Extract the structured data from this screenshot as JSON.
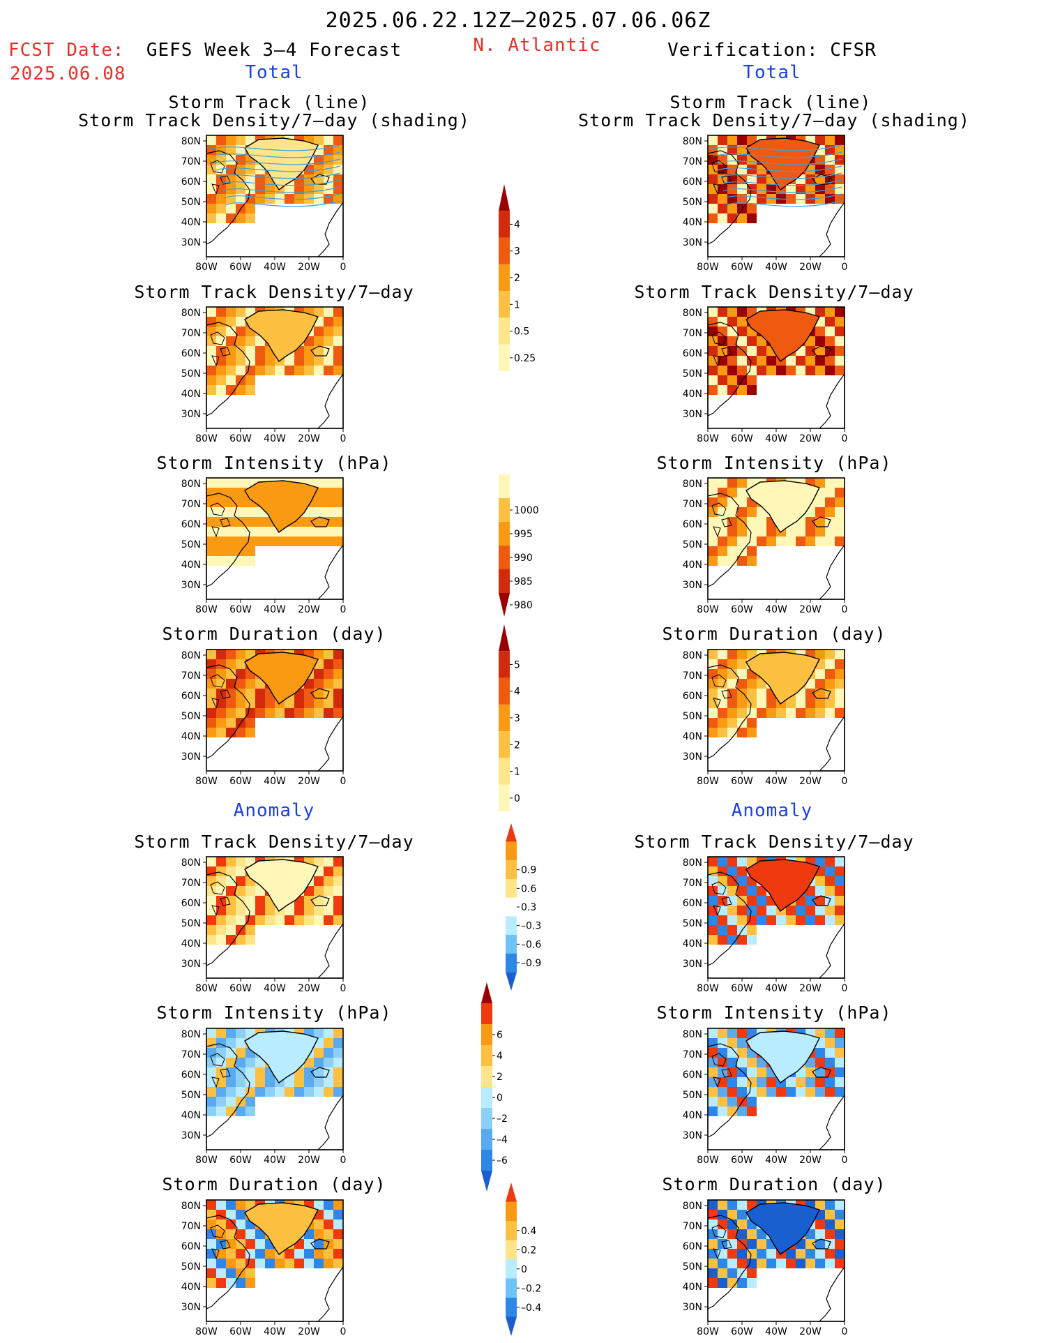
{
  "header": {
    "date_range": "2025.06.22.12Z–2025.07.06.06Z",
    "fcst_label": "FCST Date:",
    "fcst_date": "2025.06.08",
    "model_title": "GEFS Week 3–4 Forecast",
    "region": "N. Atlantic",
    "verification_title": "Verification: CFSR",
    "section_total": "Total",
    "section_anomaly": "Anomaly"
  },
  "panel_titles": {
    "track_line": "Storm Track (line)",
    "track_shading": "Storm Track Density/7–day (shading)",
    "density": "Storm Track Density/7–day",
    "intensity": "Storm Intensity (hPa)",
    "duration": "Storm Duration (day)"
  },
  "map_axes": {
    "lon_labels": [
      "80W",
      "60W",
      "40W",
      "20W",
      "0"
    ],
    "lat_labels": [
      "80N",
      "70N",
      "60N",
      "50N",
      "40N",
      "30N"
    ]
  },
  "colorbars": [
    {
      "id": "density",
      "labels": [
        "4",
        "3",
        "2",
        "1",
        "0.5",
        "0.25"
      ],
      "colors": [
        "#9b0000",
        "#d42a0c",
        "#ef5a10",
        "#f99a12",
        "#fdc040",
        "#ffe58a",
        "#fff7b8"
      ]
    },
    {
      "id": "intensity",
      "labels": [
        "1000",
        "995",
        "990",
        "985",
        "980"
      ],
      "colors": [
        "#fff7b8",
        "#fdc040",
        "#f99a12",
        "#ef5a10",
        "#d42a0c",
        "#9b0000"
      ]
    },
    {
      "id": "duration",
      "labels": [
        "5",
        "4",
        "3",
        "2",
        "1",
        "0"
      ],
      "colors": [
        "#9b0000",
        "#d42a0c",
        "#ef5a10",
        "#f99a12",
        "#fdc040",
        "#ffe58a",
        "#fff7b8"
      ]
    },
    {
      "id": "density_anom",
      "labels": [
        "0.9",
        "0.6",
        "0.3",
        "–0.3",
        "–0.6",
        "–0.9"
      ],
      "colors": [
        "#ef3a10",
        "#f99a12",
        "#fdc040",
        "#ffe58a",
        "#ffffff",
        "#b9ecff",
        "#6fc4f5",
        "#2e86e8",
        "#1a5fd0"
      ]
    },
    {
      "id": "intensity_anom",
      "labels": [
        "6",
        "4",
        "2",
        "0",
        "–2",
        "–4",
        "–6"
      ],
      "colors": [
        "#9b0000",
        "#ef3a10",
        "#f99a12",
        "#fdc040",
        "#ffe58a",
        "#b9ecff",
        "#8ccff7",
        "#5aaaf0",
        "#2e86e8",
        "#1a5fd0"
      ]
    },
    {
      "id": "duration_anom",
      "labels": [
        "0.4",
        "0.2",
        "0",
        "–0.2",
        "–0.4"
      ],
      "colors": [
        "#ef3a10",
        "#f99a12",
        "#fdc040",
        "#ffe58a",
        "#b9ecff",
        "#6fc4f5",
        "#2e86e8",
        "#1a5fd0"
      ]
    }
  ],
  "maps": [
    {
      "id": "fc-track",
      "palette": [
        "#fff7b8",
        "#fdc040",
        "#f99a12",
        "#ef5a10"
      ],
      "land": [
        "#ffe58a",
        "#fdc040"
      ],
      "tracks": true
    },
    {
      "id": "vr-track",
      "palette": [
        "#fff7b8",
        "#f99a12",
        "#ef5a10",
        "#d42a0c",
        "#9b0000"
      ],
      "land": [
        "#ef5a10",
        "#fdc040"
      ],
      "tracks": true
    },
    {
      "id": "fc-density",
      "palette": [
        "#fff7b8",
        "#fdc040",
        "#f99a12",
        "#ef5a10"
      ],
      "land": [
        "#fdc040",
        "#f99a12"
      ],
      "tracks": false
    },
    {
      "id": "vr-density",
      "palette": [
        "#fff7b8",
        "#f99a12",
        "#ef5a10",
        "#d42a0c",
        "#9b0000"
      ],
      "land": [
        "#ef5a10",
        "#fdc040"
      ],
      "tracks": false
    },
    {
      "id": "fc-intensity",
      "palette": [
        "#fff7b8",
        "#f99a12",
        "#f99a12"
      ],
      "land": [
        "#f99a12",
        "#f99a12"
      ],
      "tracks": false
    },
    {
      "id": "vr-intensity",
      "palette": [
        "#fff7b8",
        "#f99a12",
        "#ef5a10",
        "#fff7b8"
      ],
      "land": [
        "#fff7b8",
        "#fdc040"
      ],
      "tracks": false
    },
    {
      "id": "fc-duration",
      "palette": [
        "#fdc040",
        "#f99a12",
        "#ef5a10",
        "#d42a0c"
      ],
      "land": [
        "#f99a12",
        "#ef5a10"
      ],
      "tracks": false
    },
    {
      "id": "vr-duration",
      "palette": [
        "#fdc040",
        "#f99a12",
        "#ef5a10",
        "#fff7b8"
      ],
      "land": [
        "#fdc040",
        "#f99a12"
      ],
      "tracks": false
    },
    {
      "id": "fc-density-anom",
      "palette": [
        "#fff7b8",
        "#ffe58a",
        "#fdc040",
        "#ef3a10"
      ],
      "land": [
        "#fff7b8",
        "#ffe58a"
      ],
      "tracks": false
    },
    {
      "id": "vr-density-anom",
      "palette": [
        "#ef3a10",
        "#ef3a10",
        "#fdc040",
        "#2e86e8",
        "#b9ecff"
      ],
      "land": [
        "#ef3a10",
        "#fdc040"
      ],
      "tracks": false
    },
    {
      "id": "fc-intensity-anom",
      "palette": [
        "#b9ecff",
        "#8ccff7",
        "#5aaaf0",
        "#fdc040"
      ],
      "land": [
        "#b9ecff",
        "#ffe58a"
      ],
      "tracks": false
    },
    {
      "id": "vr-intensity-anom",
      "palette": [
        "#b9ecff",
        "#5aaaf0",
        "#2e86e8",
        "#fdc040",
        "#ef3a10"
      ],
      "land": [
        "#b9ecff",
        "#8ccff7"
      ],
      "tracks": false
    },
    {
      "id": "fc-duration-anom",
      "palette": [
        "#ef3a10",
        "#2e86e8",
        "#fdc040",
        "#b9ecff",
        "#f99a12"
      ],
      "land": [
        "#fdc040",
        "#ef3a10"
      ],
      "tracks": false
    },
    {
      "id": "vr-duration-anom",
      "palette": [
        "#1a5fd0",
        "#2e86e8",
        "#ef3a10",
        "#fdc040",
        "#b9ecff"
      ],
      "land": [
        "#1a5fd0",
        "#ef3a10"
      ],
      "tracks": false
    }
  ]
}
